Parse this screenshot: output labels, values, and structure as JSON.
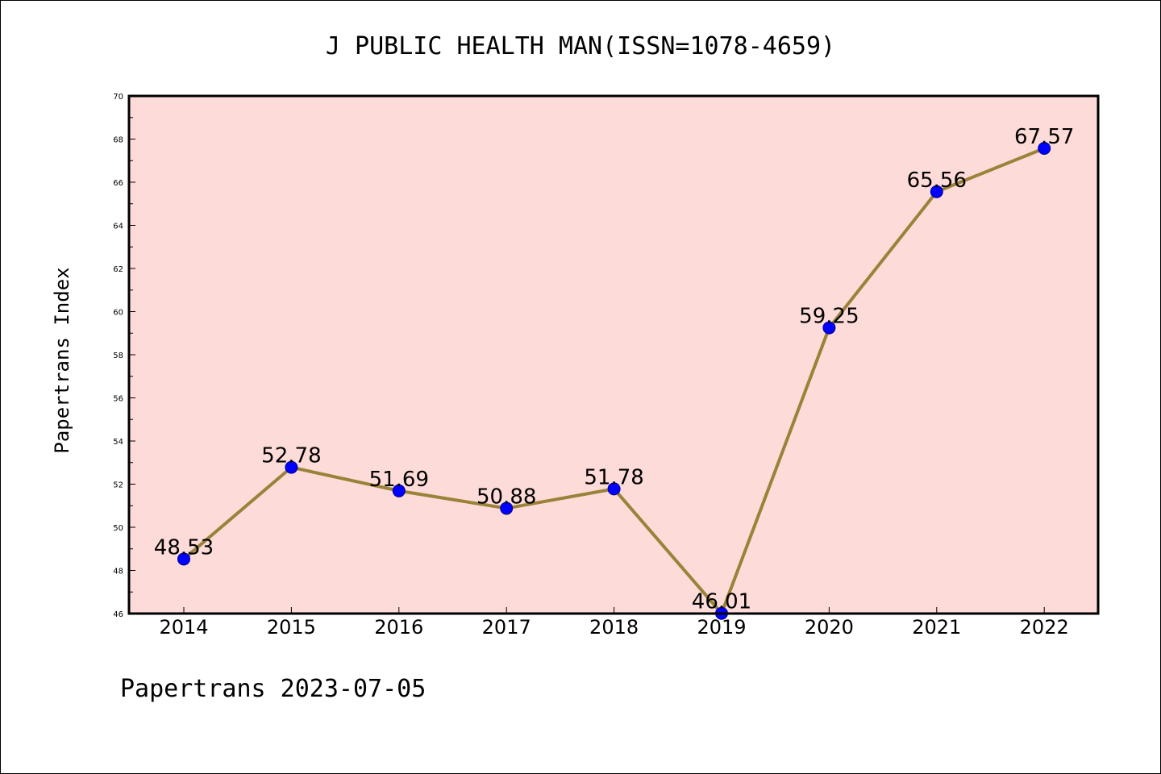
{
  "chart_data": {
    "type": "line",
    "title": "J PUBLIC HEALTH MAN(ISSN=1078-4659)",
    "xlabel": "",
    "ylabel": "Papertrans Index",
    "categories": [
      "2014",
      "2015",
      "2016",
      "2017",
      "2018",
      "2019",
      "2020",
      "2021",
      "2022"
    ],
    "values": [
      48.53,
      52.78,
      51.69,
      50.88,
      51.78,
      46.01,
      59.25,
      65.56,
      67.57
    ],
    "data_labels": [
      "48.53",
      "52.78",
      "51.69",
      "50.88",
      "51.78",
      "46.01",
      "59.25",
      "65.56",
      "67.57"
    ],
    "ylim": [
      46,
      70
    ],
    "yticks": [
      46,
      48,
      50,
      52,
      54,
      56,
      58,
      60,
      62,
      64,
      66,
      68,
      70
    ],
    "ytick_labels": [
      "46",
      "48",
      "50",
      "52",
      "54",
      "56",
      "58",
      "60",
      "62",
      "64",
      "66",
      "68",
      "70"
    ],
    "grid": false,
    "legend": "none",
    "colors": {
      "plot_background": "#fddbd8",
      "line": "#9a8239",
      "marker_fill": "#0000ff",
      "marker_edge": "#00008b",
      "axes": "#000000"
    }
  },
  "footer": {
    "text": "Papertrans 2023-07-05"
  }
}
